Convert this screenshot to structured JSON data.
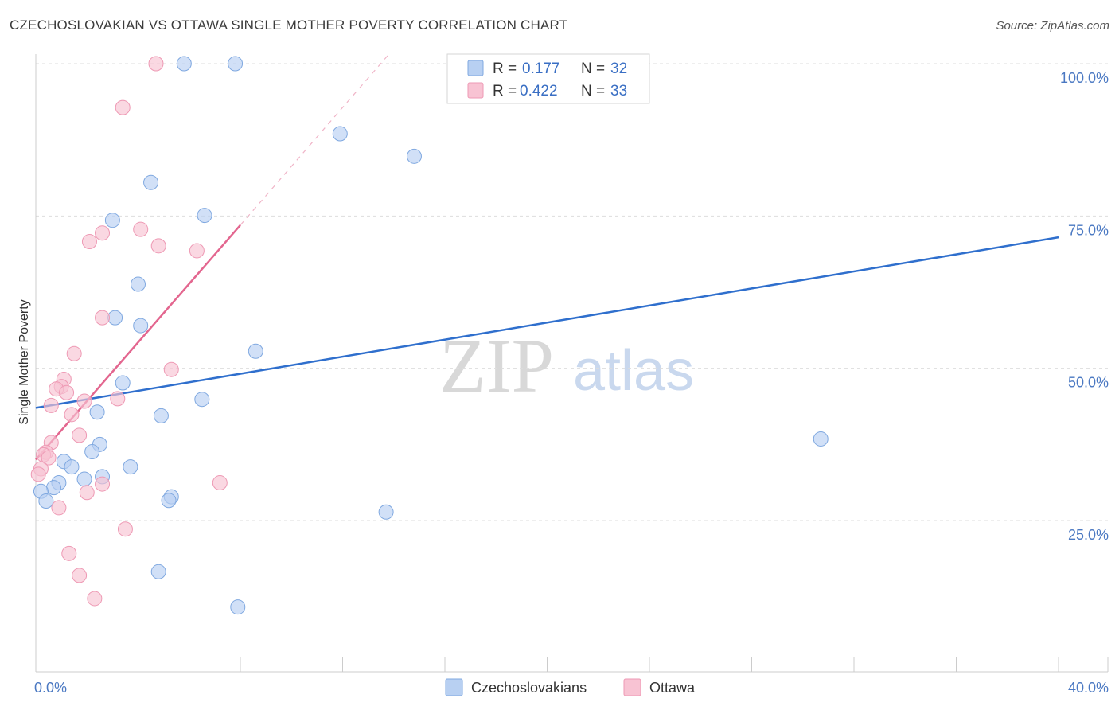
{
  "title": "CZECHOSLOVAKIAN VS OTTAWA SINGLE MOTHER POVERTY CORRELATION CHART",
  "source": "Source: ZipAtlas.com",
  "watermark": {
    "zip": "ZIP",
    "atlas": "atlas"
  },
  "legend_top": [
    {
      "r_label": "R =",
      "r_value": "0.177",
      "n_label": "N =",
      "n_value": "32"
    },
    {
      "r_label": "R =",
      "r_value": "0.422",
      "n_label": "N =",
      "n_value": "33"
    }
  ],
  "colors": {
    "blue_fill": "#b8d0f2",
    "blue_stroke": "#7fa8e0",
    "blue_line": "#2f6fcd",
    "pink_fill": "#f8c3d3",
    "pink_stroke": "#ee99b4",
    "pink_line": "#e3668f",
    "grid": "#dddddd",
    "axis_text": "#4a78c2"
  },
  "chart_data": {
    "type": "scatter",
    "title": "CZECHOSLOVAKIAN VS OTTAWA SINGLE MOTHER POVERTY CORRELATION CHART",
    "xlabel": "",
    "ylabel": "Single Mother Poverty",
    "xlim": [
      0,
      40
    ],
    "ylim": [
      0,
      105
    ],
    "x_tick_labels": [
      "0.0%",
      "40.0%"
    ],
    "y_ticks": [
      25,
      50,
      75,
      100
    ],
    "y_tick_labels": [
      "25.0%",
      "50.0%",
      "75.0%",
      "100.0%"
    ],
    "grid": "horizontal dashed",
    "legend_position": "top-center and bottom",
    "series": [
      {
        "name": "Czechoslovakians",
        "R": 0.177,
        "N": 32,
        "points": [
          [
            5.8,
            100
          ],
          [
            7.8,
            100
          ],
          [
            11.9,
            88.5
          ],
          [
            14.8,
            84.8
          ],
          [
            4.5,
            80.5
          ],
          [
            3.0,
            74.3
          ],
          [
            6.6,
            75.1
          ],
          [
            4.0,
            63.8
          ],
          [
            3.1,
            58.3
          ],
          [
            4.1,
            57.0
          ],
          [
            8.6,
            52.8
          ],
          [
            3.4,
            47.6
          ],
          [
            6.5,
            44.9
          ],
          [
            2.4,
            42.8
          ],
          [
            4.9,
            42.2
          ],
          [
            2.5,
            37.5
          ],
          [
            2.2,
            36.3
          ],
          [
            1.1,
            34.7
          ],
          [
            3.7,
            33.8
          ],
          [
            1.4,
            33.8
          ],
          [
            2.6,
            32.2
          ],
          [
            1.9,
            31.8
          ],
          [
            0.9,
            31.2
          ],
          [
            0.7,
            30.4
          ],
          [
            0.2,
            29.8
          ],
          [
            0.4,
            28.2
          ],
          [
            5.3,
            28.9
          ],
          [
            5.2,
            28.3
          ],
          [
            13.7,
            26.4
          ],
          [
            30.7,
            38.4
          ],
          [
            4.8,
            16.6
          ],
          [
            7.9,
            10.8
          ]
        ],
        "trend": {
          "x": [
            0,
            40
          ],
          "y": [
            43.5,
            71.5
          ]
        }
      },
      {
        "name": "Ottawa",
        "R": 0.422,
        "N": 33,
        "points": [
          [
            4.7,
            100
          ],
          [
            3.4,
            92.8
          ],
          [
            2.6,
            72.2
          ],
          [
            4.1,
            72.8
          ],
          [
            2.1,
            70.8
          ],
          [
            4.8,
            70.1
          ],
          [
            6.3,
            69.3
          ],
          [
            2.6,
            58.3
          ],
          [
            1.5,
            52.4
          ],
          [
            5.3,
            49.8
          ],
          [
            1.1,
            48.2
          ],
          [
            1.0,
            47.0
          ],
          [
            0.8,
            46.6
          ],
          [
            1.2,
            46.0
          ],
          [
            3.2,
            45.0
          ],
          [
            1.9,
            44.6
          ],
          [
            0.6,
            43.9
          ],
          [
            1.4,
            42.4
          ],
          [
            1.7,
            39.0
          ],
          [
            0.6,
            37.8
          ],
          [
            0.4,
            36.2
          ],
          [
            0.3,
            35.8
          ],
          [
            0.5,
            35.3
          ],
          [
            0.2,
            33.5
          ],
          [
            0.1,
            32.6
          ],
          [
            2.6,
            31.0
          ],
          [
            7.2,
            31.2
          ],
          [
            2.0,
            29.6
          ],
          [
            0.9,
            27.1
          ],
          [
            3.5,
            23.6
          ],
          [
            1.3,
            19.6
          ],
          [
            1.7,
            16.0
          ],
          [
            2.3,
            12.2
          ]
        ],
        "trend": {
          "x": [
            0,
            8.0
          ],
          "y": [
            35.0,
            73.5
          ]
        },
        "trend_extension": {
          "x": [
            8.0,
            13.8
          ],
          "y": [
            73.5,
            101.5
          ]
        }
      }
    ]
  },
  "bottom_legend": [
    {
      "label": "Czechoslovakians"
    },
    {
      "label": "Ottawa"
    }
  ]
}
